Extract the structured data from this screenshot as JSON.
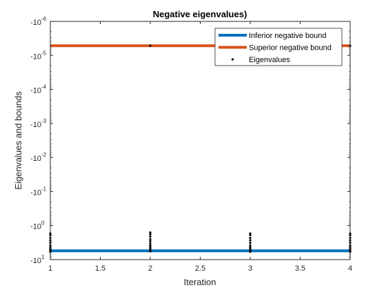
{
  "chart_data": {
    "type": "line",
    "title": "Negative eigenvalues)",
    "xlabel": "Iteration",
    "ylabel": "Eigenvalues and bounds",
    "xlim": [
      1,
      4
    ],
    "x_ticks": [
      {
        "value": 1,
        "label": "1"
      },
      {
        "value": 1.5,
        "label": "1.5"
      },
      {
        "value": 2,
        "label": "2"
      },
      {
        "value": 2.5,
        "label": "2.5"
      },
      {
        "value": 3,
        "label": "3"
      },
      {
        "value": 3.5,
        "label": "3.5"
      },
      {
        "value": 4,
        "label": "4"
      }
    ],
    "y_scale": "log",
    "y_sign": "negative",
    "ylim_magnitude": [
      1e-06,
      10
    ],
    "y_ticks": [
      {
        "magnitude": 1e-06,
        "base": "-10",
        "exp": "-6"
      },
      {
        "magnitude": 1e-05,
        "base": "-10",
        "exp": "-5"
      },
      {
        "magnitude": 0.0001,
        "base": "-10",
        "exp": "-4"
      },
      {
        "magnitude": 0.001,
        "base": "-10",
        "exp": "-3"
      },
      {
        "magnitude": 0.01,
        "base": "-10",
        "exp": "-2"
      },
      {
        "magnitude": 0.1,
        "base": "-10",
        "exp": "-1"
      },
      {
        "magnitude": 1,
        "base": "-10",
        "exp": "0"
      },
      {
        "magnitude": 10,
        "base": "-10",
        "exp": "1"
      }
    ],
    "grid": false,
    "legend_position": "top-right",
    "series": [
      {
        "name": "Inferior negative bound",
        "kind": "line",
        "color": "#0072BD",
        "x": [
          1,
          4
        ],
        "y": [
          -5.5,
          -5.5
        ]
      },
      {
        "name": "Superior negative bound",
        "kind": "line",
        "color": "#D95319",
        "x": [
          1,
          4
        ],
        "y": [
          -5.2e-06,
          -5.2e-06
        ]
      },
      {
        "name": "Eigenvalues",
        "kind": "scatter",
        "color": "#000000",
        "x": [
          1,
          1,
          1,
          1,
          1,
          1,
          1,
          1,
          1,
          1,
          1,
          2,
          2,
          2,
          2,
          2,
          2,
          2,
          2,
          2,
          2,
          2,
          2,
          3,
          3,
          3,
          3,
          3,
          3,
          3,
          3,
          3,
          3,
          3,
          4,
          4,
          4,
          4,
          4,
          4,
          4,
          4,
          4,
          4,
          4,
          4
        ],
        "y": [
          -1.7,
          -1.9,
          -2.3,
          -2.7,
          -3.2,
          -3.8,
          -4.3,
          -4.8,
          -5.2,
          -5.5,
          -5.9,
          -5.2e-06,
          -1.6,
          -1.8,
          -2.1,
          -2.5,
          -2.9,
          -3.4,
          -3.9,
          -4.4,
          -4.9,
          -5.3,
          -5.7,
          -1.7,
          -1.9,
          -2.3,
          -2.7,
          -3.2,
          -3.8,
          -4.3,
          -4.8,
          -5.2,
          -5.5,
          -5.9,
          -5.2e-06,
          -1.7,
          -1.9,
          -2.3,
          -2.7,
          -3.2,
          -3.8,
          -4.3,
          -4.8,
          -5.2,
          -5.5,
          -5.9
        ]
      }
    ]
  }
}
